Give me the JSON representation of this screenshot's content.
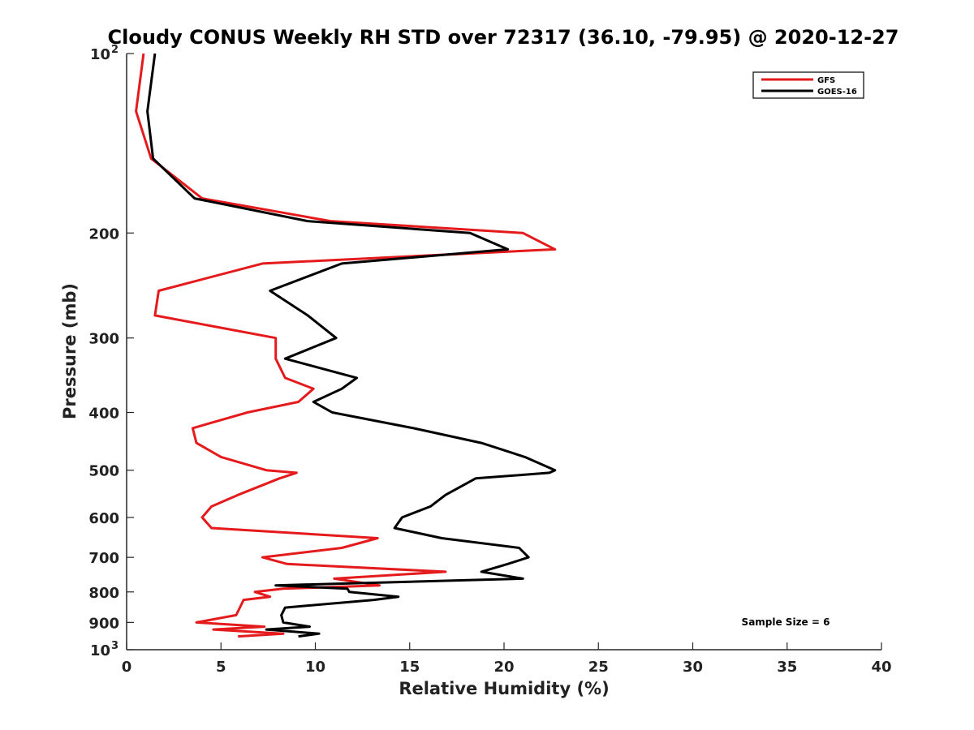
{
  "chart_data": {
    "type": "line",
    "title": "Cloudy CONUS Weekly RH STD over 72317 (36.10, -79.95) @ 2020-12-27",
    "xlabel": "Relative Humidity (%)",
    "ylabel": "Pressure (mb)",
    "xlim": [
      0,
      40
    ],
    "ylim": [
      100,
      1000
    ],
    "yscale": "log",
    "y_reversed": true,
    "x_ticks": [
      "0",
      "5",
      "10",
      "15",
      "20",
      "25",
      "30",
      "35",
      "40"
    ],
    "y_ticks": [
      {
        "value": 100,
        "label": "10",
        "sup": "2"
      },
      {
        "value": 200,
        "label": "200"
      },
      {
        "value": 300,
        "label": "300"
      },
      {
        "value": 400,
        "label": "400"
      },
      {
        "value": 500,
        "label": "500"
      },
      {
        "value": 600,
        "label": "600"
      },
      {
        "value": 700,
        "label": "700"
      },
      {
        "value": 800,
        "label": "800"
      },
      {
        "value": 900,
        "label": "900"
      },
      {
        "value": 1000,
        "label": "10",
        "sup": "3"
      }
    ],
    "grid": false,
    "legend_position": "top-right",
    "annotation": "Sample Size = 6",
    "series": [
      {
        "name": "GFS",
        "color": "#e41a1c",
        "points": [
          [
            0.9,
            100
          ],
          [
            0.5,
            125
          ],
          [
            1.3,
            150
          ],
          [
            4.0,
            175
          ],
          [
            10.8,
            191
          ],
          [
            21.0,
            200
          ],
          [
            22.7,
            213
          ],
          [
            7.2,
            225
          ],
          [
            1.7,
            250
          ],
          [
            1.5,
            275
          ],
          [
            7.9,
            300
          ],
          [
            7.9,
            325
          ],
          [
            8.4,
            350
          ],
          [
            9.9,
            365
          ],
          [
            9.1,
            384
          ],
          [
            6.4,
            400
          ],
          [
            3.5,
            425
          ],
          [
            3.7,
            450
          ],
          [
            5.0,
            475
          ],
          [
            7.4,
            500
          ],
          [
            9.0,
            505
          ],
          [
            8.1,
            516
          ],
          [
            5.9,
            550
          ],
          [
            4.5,
            575
          ],
          [
            4.0,
            600
          ],
          [
            4.5,
            625
          ],
          [
            13.3,
            650
          ],
          [
            11.4,
            675
          ],
          [
            7.2,
            700
          ],
          [
            8.5,
            718
          ],
          [
            16.9,
            740
          ],
          [
            11.0,
            760
          ],
          [
            13.4,
            780
          ],
          [
            8.3,
            790
          ],
          [
            6.8,
            800
          ],
          [
            7.6,
            815
          ],
          [
            6.2,
            825
          ],
          [
            6.0,
            850
          ],
          [
            5.8,
            875
          ],
          [
            3.7,
            900
          ],
          [
            7.3,
            915
          ],
          [
            4.6,
            925
          ],
          [
            8.3,
            940
          ],
          [
            5.9,
            950
          ]
        ]
      },
      {
        "name": "GOES-16",
        "color": "#000000",
        "points": [
          [
            1.5,
            100
          ],
          [
            1.1,
            125
          ],
          [
            1.4,
            150
          ],
          [
            3.6,
            175
          ],
          [
            9.6,
            191
          ],
          [
            18.2,
            200
          ],
          [
            20.2,
            213
          ],
          [
            11.4,
            225
          ],
          [
            7.6,
            250
          ],
          [
            9.6,
            275
          ],
          [
            11.1,
            300
          ],
          [
            8.4,
            325
          ],
          [
            12.2,
            350
          ],
          [
            11.4,
            365
          ],
          [
            9.9,
            384
          ],
          [
            10.9,
            400
          ],
          [
            15.2,
            425
          ],
          [
            18.8,
            450
          ],
          [
            21.1,
            475
          ],
          [
            22.7,
            500
          ],
          [
            22.4,
            505
          ],
          [
            18.5,
            516
          ],
          [
            16.9,
            550
          ],
          [
            16.1,
            575
          ],
          [
            14.6,
            600
          ],
          [
            14.2,
            625
          ],
          [
            16.7,
            650
          ],
          [
            20.8,
            675
          ],
          [
            21.3,
            700
          ],
          [
            20.2,
            718
          ],
          [
            18.8,
            740
          ],
          [
            21.0,
            760
          ],
          [
            7.9,
            780
          ],
          [
            11.7,
            790
          ],
          [
            11.8,
            800
          ],
          [
            14.4,
            815
          ],
          [
            13.1,
            825
          ],
          [
            8.4,
            850
          ],
          [
            8.2,
            875
          ],
          [
            8.3,
            900
          ],
          [
            9.7,
            915
          ],
          [
            7.4,
            925
          ],
          [
            10.2,
            940
          ],
          [
            9.1,
            950
          ]
        ]
      }
    ]
  }
}
